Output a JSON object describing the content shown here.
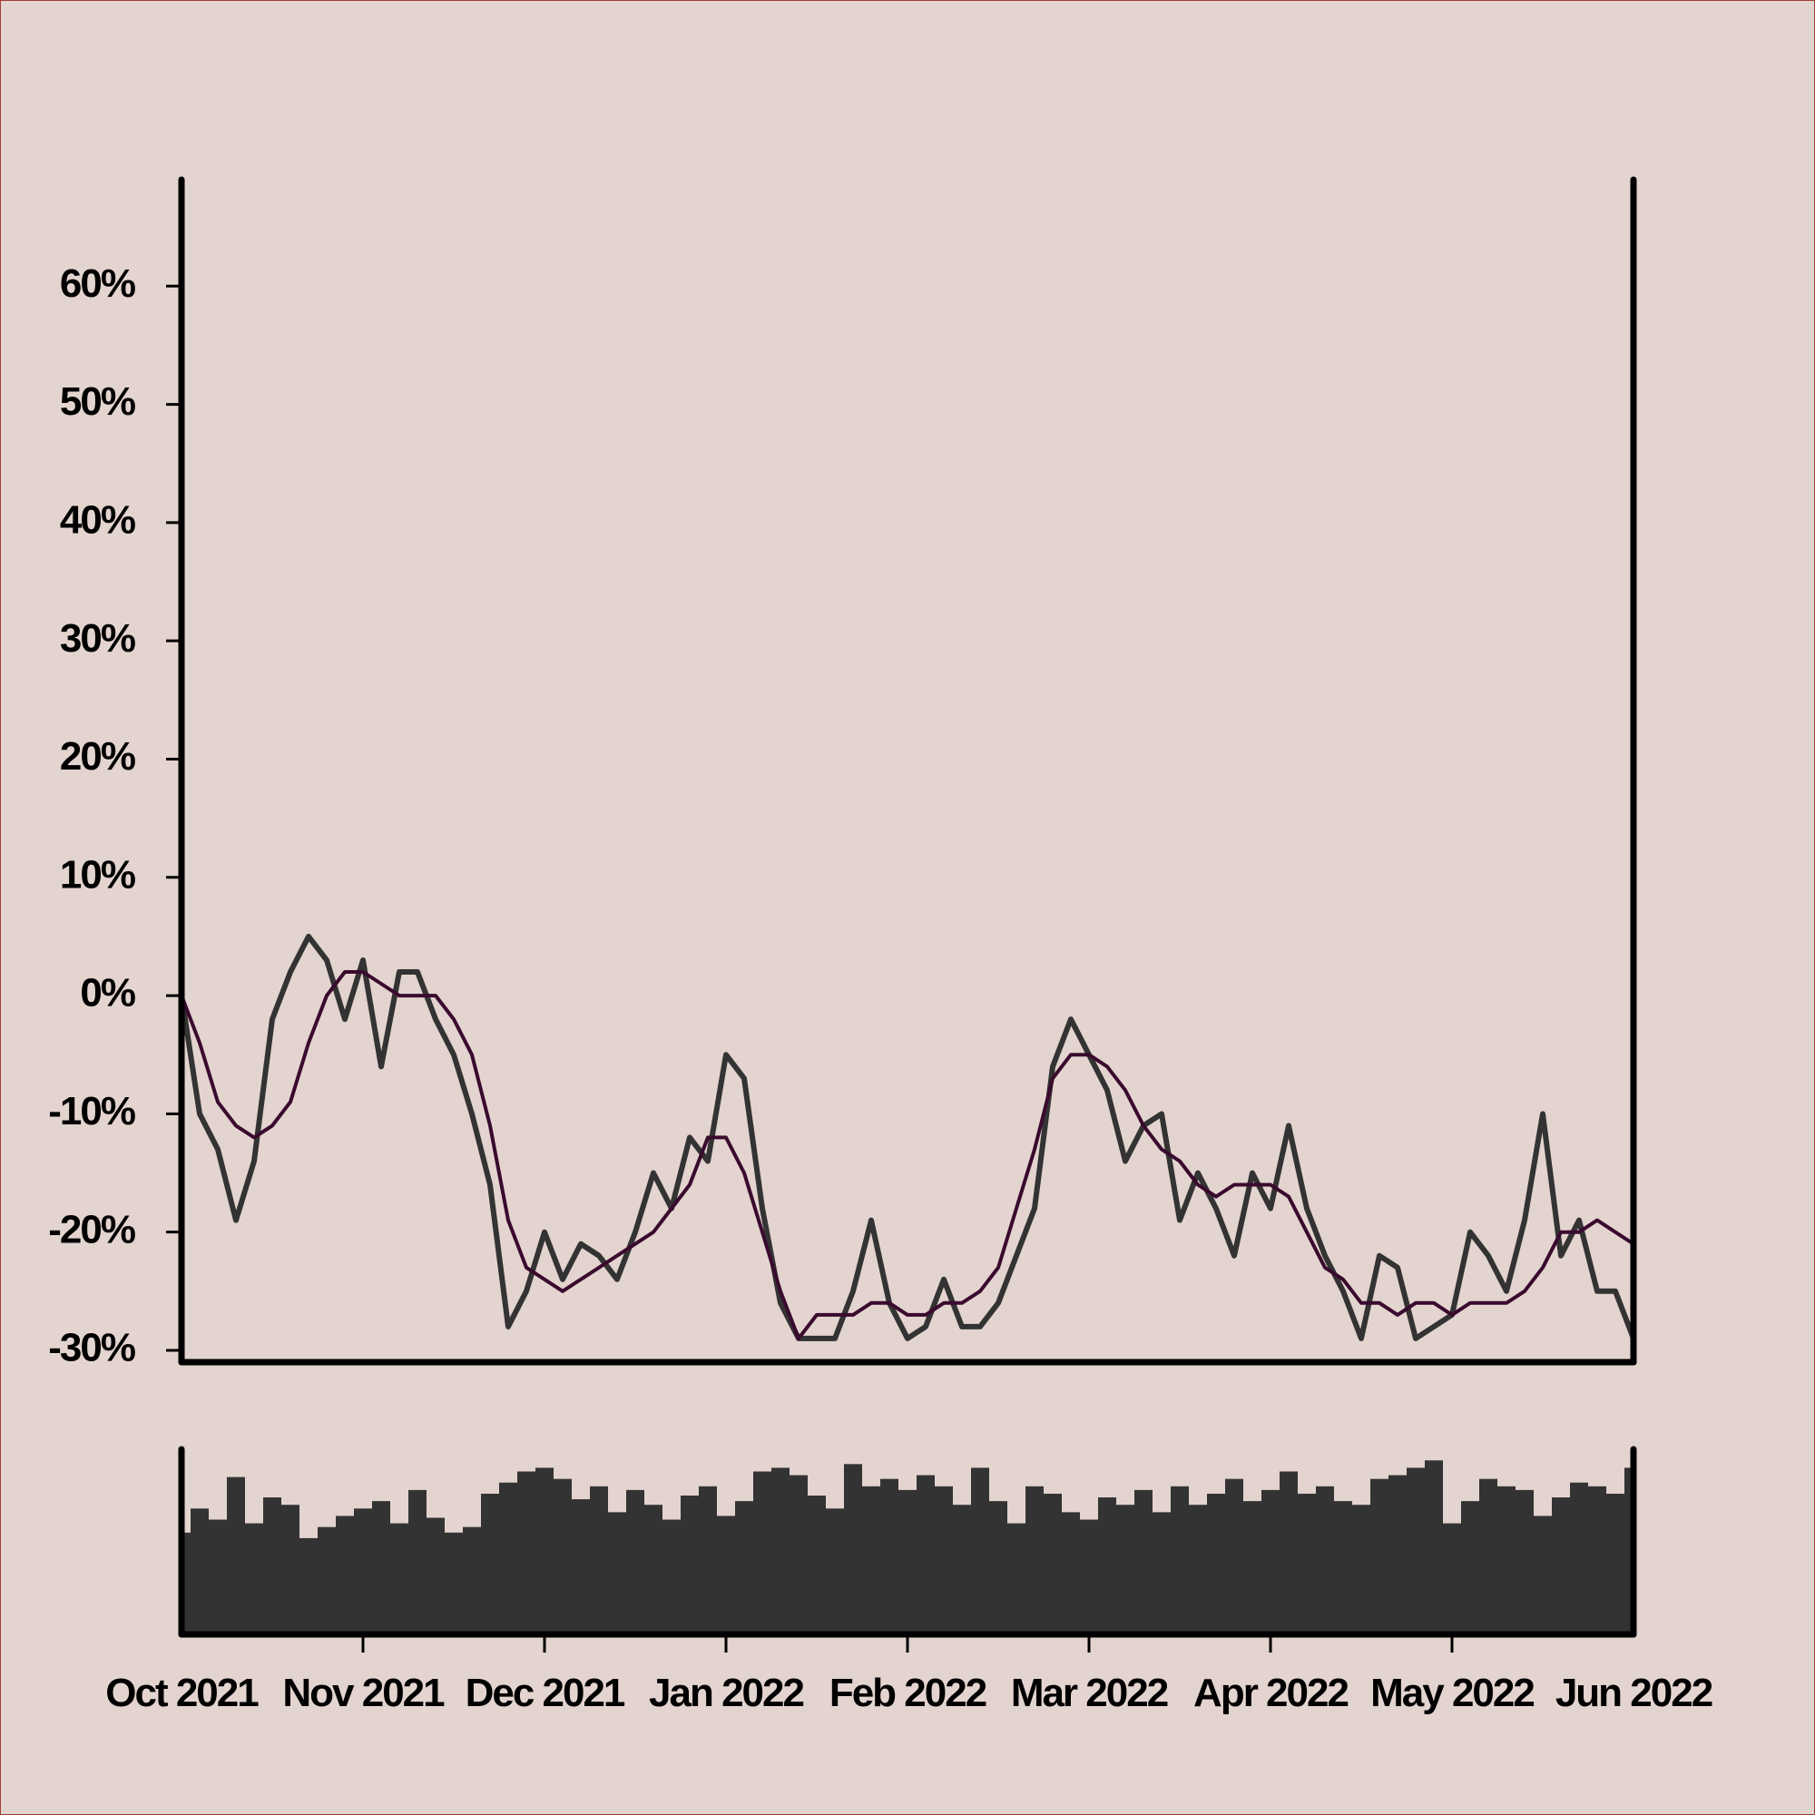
{
  "chart_data": [
    {
      "type": "line",
      "categories": [
        "Oct 2021",
        null,
        null,
        null,
        null,
        null,
        null,
        null,
        null,
        null,
        "Nov 2021",
        null,
        null,
        null,
        null,
        null,
        null,
        null,
        null,
        null,
        "Dec 2021",
        null,
        null,
        null,
        null,
        null,
        null,
        null,
        null,
        null,
        "Jan 2022",
        null,
        null,
        null,
        null,
        null,
        null,
        null,
        null,
        null,
        "Feb 2022",
        null,
        null,
        null,
        null,
        null,
        null,
        null,
        null,
        null,
        "Mar 2022",
        null,
        null,
        null,
        null,
        null,
        null,
        null,
        null,
        null,
        "Apr 2022",
        null,
        null,
        null,
        null,
        null,
        null,
        null,
        null,
        null,
        "May 2022",
        null,
        null,
        null,
        null,
        null,
        null,
        null,
        null,
        null,
        "Jun 2022"
      ],
      "series": [
        {
          "color": "#333333",
          "values": [
            0,
            -10,
            -13,
            -19,
            -14,
            -2,
            2,
            5,
            3,
            -2,
            3,
            -6,
            2,
            2,
            -2,
            -5,
            -10,
            -16,
            -28,
            -25,
            -20,
            -24,
            -21,
            -22,
            -24,
            -20,
            -15,
            -18,
            -12,
            -14,
            -5,
            -7,
            -18,
            -26,
            -29,
            -29,
            -29,
            -25,
            -19,
            -26,
            -29,
            -28,
            -24,
            -28,
            -28,
            -26,
            -22,
            -18,
            -6,
            -2,
            -5,
            -8,
            -14,
            -11,
            -10,
            -19,
            -15,
            -18,
            -22,
            -15,
            -18,
            -11,
            -18,
            -22,
            -25,
            -29,
            -22,
            -23,
            -29,
            -28,
            -27,
            -20,
            -22,
            -25,
            -19,
            -10,
            -22,
            -19,
            -25,
            -25,
            -29
          ]
        },
        {
          "color": "#3a0a2e",
          "values": [
            0,
            -4,
            -9,
            -11,
            -12,
            -11,
            -9,
            -4,
            0,
            2,
            2,
            1,
            0,
            0,
            0,
            -2,
            -5,
            -11,
            -19,
            -23,
            -24,
            -25,
            -24,
            -23,
            -22,
            -21,
            -20,
            -18,
            -16,
            -12,
            -12,
            -15,
            -20,
            -25,
            -29,
            -27,
            -27,
            -27,
            -26,
            -26,
            -27,
            -27,
            -26,
            -26,
            -25,
            -23,
            -18,
            -13,
            -7,
            -5,
            -5,
            -6,
            -8,
            -11,
            -13,
            -14,
            -16,
            -17,
            -16,
            -16,
            -16,
            -17,
            -20,
            -23,
            -24,
            -26,
            -26,
            -27,
            -26,
            -26,
            -27,
            -26,
            -26,
            -26,
            -25,
            -23,
            -20,
            -20,
            -19,
            -20,
            -21
          ]
        }
      ],
      "ylim": [
        -31,
        69
      ],
      "yticks": [
        {
          "value": -30,
          "label": "-30%"
        },
        {
          "value": -20,
          "label": "-20%"
        },
        {
          "value": -10,
          "label": "-10%"
        },
        {
          "value": 0,
          "label": "0%"
        },
        {
          "value": 10,
          "label": "10%"
        },
        {
          "value": 20,
          "label": "20%"
        },
        {
          "value": 30,
          "label": "30%"
        },
        {
          "value": 40,
          "label": "40%"
        },
        {
          "value": 50,
          "label": "50%"
        },
        {
          "value": 60,
          "label": "60%"
        }
      ]
    },
    {
      "type": "bar",
      "color": "#333333",
      "ylim": [
        0,
        100
      ],
      "values": [
        55,
        68,
        62,
        85,
        60,
        74,
        70,
        52,
        58,
        64,
        68,
        72,
        60,
        78,
        63,
        55,
        58,
        76,
        82,
        88,
        90,
        84,
        73,
        80,
        66,
        78,
        70,
        62,
        75,
        80,
        64,
        72,
        88,
        90,
        86,
        75,
        68,
        92,
        80,
        84,
        78,
        86,
        80,
        70,
        90,
        72,
        60,
        80,
        76,
        66,
        62,
        74,
        70,
        78,
        66,
        80,
        70,
        76,
        84,
        72,
        78,
        88,
        76,
        80,
        72,
        70,
        84,
        86,
        90,
        94,
        60,
        72,
        84,
        80,
        78,
        64,
        74,
        82,
        80,
        76,
        90
      ]
    }
  ]
}
